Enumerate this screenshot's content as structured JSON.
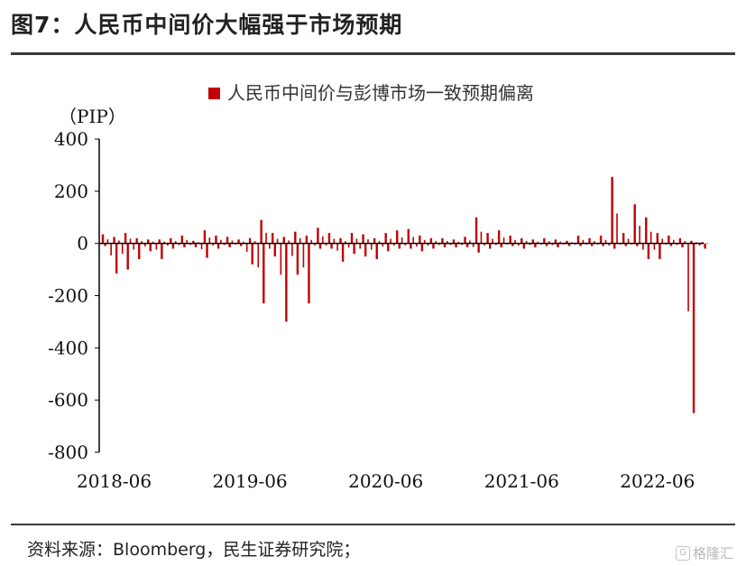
{
  "figure": {
    "title": "图7：人民币中间价大幅强于市场预期",
    "source": "资料来源：Bloomberg，民生证券研究院；",
    "watermark": "格隆汇"
  },
  "chart_data": {
    "type": "bar",
    "ylabel": "（PIP）",
    "ylim": [
      -800,
      400
    ],
    "yticks": [
      "400",
      "200",
      "0",
      "-200",
      "-400",
      "-600",
      "-800"
    ],
    "xticks": [
      "2018-06",
      "2019-06",
      "2020-06",
      "2021-06",
      "2022-06"
    ],
    "x_start": "2018-05",
    "x_end": "2022-10",
    "legend": {
      "position": "top-right",
      "entries": [
        "人民币中间价与彭博市场一致预期偏离"
      ]
    },
    "series": [
      {
        "name": "人民币中间价与彭博市场一致预期偏离",
        "color": "#c00000",
        "x": [
          "2018-05",
          "2018-06",
          "2018-07",
          "2018-08",
          "2018-09",
          "2018-10",
          "2018-11",
          "2018-12",
          "2019-01",
          "2019-02",
          "2019-03",
          "2019-04",
          "2019-05",
          "2019-06",
          "2019-07",
          "2019-08",
          "2019-09",
          "2019-10",
          "2019-11",
          "2019-12",
          "2020-01",
          "2020-02",
          "2020-03",
          "2020-04",
          "2020-05",
          "2020-06",
          "2020-07",
          "2020-08",
          "2020-09",
          "2020-10",
          "2020-11",
          "2020-12",
          "2021-01",
          "2021-02",
          "2021-03",
          "2021-04",
          "2021-05",
          "2021-06",
          "2021-07",
          "2021-08",
          "2021-09",
          "2021-10",
          "2021-11",
          "2021-12",
          "2022-01",
          "2022-02",
          "2022-03",
          "2022-04",
          "2022-05",
          "2022-06",
          "2022-07",
          "2022-08",
          "2022-09",
          "2022-10"
        ],
        "min": [
          -10,
          -115,
          -100,
          -60,
          -30,
          -60,
          -20,
          -15,
          -15,
          -55,
          -20,
          -15,
          -10,
          -80,
          -230,
          -50,
          -300,
          -120,
          -230,
          -20,
          -20,
          -70,
          -40,
          -50,
          -60,
          -30,
          -20,
          -20,
          -30,
          -20,
          -15,
          -15,
          -15,
          -35,
          -20,
          -15,
          -10,
          -20,
          -15,
          -10,
          -15,
          -10,
          -10,
          -10,
          -10,
          -20,
          -10,
          -10,
          -60,
          -60,
          -10,
          -15,
          -650,
          -20
        ],
        "max": [
          35,
          25,
          40,
          20,
          15,
          15,
          20,
          30,
          10,
          50,
          30,
          25,
          15,
          20,
          90,
          40,
          25,
          45,
          30,
          60,
          40,
          20,
          40,
          35,
          20,
          40,
          50,
          55,
          30,
          20,
          20,
          15,
          25,
          100,
          40,
          50,
          30,
          20,
          15,
          20,
          15,
          10,
          30,
          20,
          30,
          255,
          40,
          150,
          100,
          40,
          30,
          20,
          10,
          5
        ]
      }
    ]
  }
}
